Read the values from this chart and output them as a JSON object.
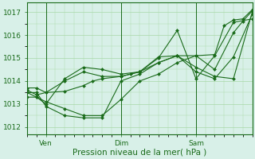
{
  "bg_color": "#d8f0e8",
  "grid_color": "#a8d8a8",
  "line_color": "#1a6b1a",
  "marker_color": "#1a6b1a",
  "xlabel": "Pression niveau de la mer( hPa )",
  "xlabel_fontsize": 7.5,
  "yticks": [
    1012,
    1013,
    1014,
    1015,
    1016,
    1017
  ],
  "ylim": [
    1011.7,
    1017.4
  ],
  "xlim": [
    0,
    48
  ],
  "xtick_positions": [
    4,
    20,
    36
  ],
  "xtick_labels": [
    "Ven",
    "Dim",
    "Sam"
  ],
  "vline_positions": [
    4,
    20,
    36
  ],
  "series": [
    [
      0,
      1013.6,
      2,
      1013.4,
      4,
      1013.5,
      8,
      1013.55,
      12,
      1013.8,
      14,
      1014.0,
      16,
      1014.1,
      20,
      1014.2,
      22,
      1014.3,
      24,
      1014.4,
      28,
      1014.8,
      32,
      1015.1,
      36,
      1015.1,
      40,
      1015.15,
      42,
      1016.4,
      44,
      1016.65,
      46,
      1016.7,
      48,
      1017.1
    ],
    [
      0,
      1013.3,
      2,
      1013.3,
      4,
      1013.1,
      8,
      1012.8,
      12,
      1012.5,
      16,
      1012.5,
      20,
      1013.2,
      24,
      1014.0,
      28,
      1014.3,
      32,
      1014.8,
      36,
      1015.1,
      40,
      1014.5,
      44,
      1016.1,
      46,
      1016.6,
      48,
      1017.05
    ],
    [
      0,
      1013.5,
      2,
      1013.5,
      4,
      1012.9,
      8,
      1012.5,
      12,
      1012.4,
      16,
      1012.4,
      20,
      1014.0,
      24,
      1014.3,
      28,
      1014.8,
      32,
      1015.1,
      36,
      1014.6,
      40,
      1014.2,
      44,
      1014.1,
      48,
      1017.0
    ],
    [
      0,
      1013.5,
      2,
      1013.3,
      4,
      1013.0,
      8,
      1014.1,
      12,
      1014.6,
      16,
      1014.5,
      20,
      1014.3,
      24,
      1014.4,
      28,
      1015.05,
      32,
      1015.1,
      36,
      1014.4,
      40,
      1014.1,
      44,
      1015.05,
      48,
      1016.9
    ],
    [
      0,
      1013.7,
      2,
      1013.7,
      4,
      1013.5,
      8,
      1014.0,
      12,
      1014.4,
      16,
      1014.2,
      20,
      1014.2,
      24,
      1014.4,
      28,
      1015.0,
      32,
      1016.2,
      36,
      1014.1,
      40,
      1015.1,
      44,
      1016.55,
      48,
      1016.7
    ]
  ]
}
